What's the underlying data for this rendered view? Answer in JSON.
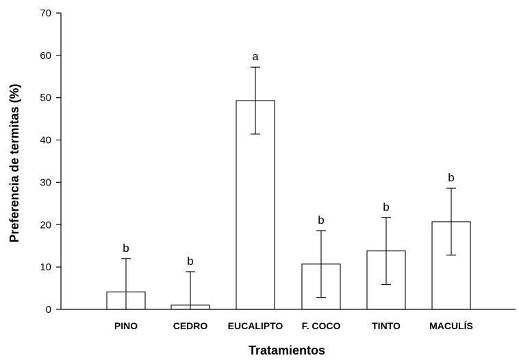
{
  "chart_data": {
    "type": "bar",
    "title": "",
    "xlabel": "Tratamientos",
    "ylabel": "Preferencia de termitas (%)",
    "ylim": [
      0,
      70
    ],
    "yticks": [
      0,
      10,
      20,
      30,
      40,
      50,
      60,
      70
    ],
    "grid": false,
    "categories": [
      "PINO",
      "CEDRO",
      "EUCALIPTO",
      "F. COCO",
      "TINTO",
      "MACULÍS"
    ],
    "values": [
      4.1,
      1.0,
      49.3,
      10.7,
      13.8,
      20.7
    ],
    "error_upper": [
      12.0,
      8.9,
      57.2,
      18.6,
      21.7,
      28.6
    ],
    "error_lower": [
      0,
      0,
      41.4,
      2.8,
      5.9,
      12.8
    ],
    "significance": [
      "b",
      "b",
      "a",
      "b",
      "b",
      "b"
    ]
  }
}
